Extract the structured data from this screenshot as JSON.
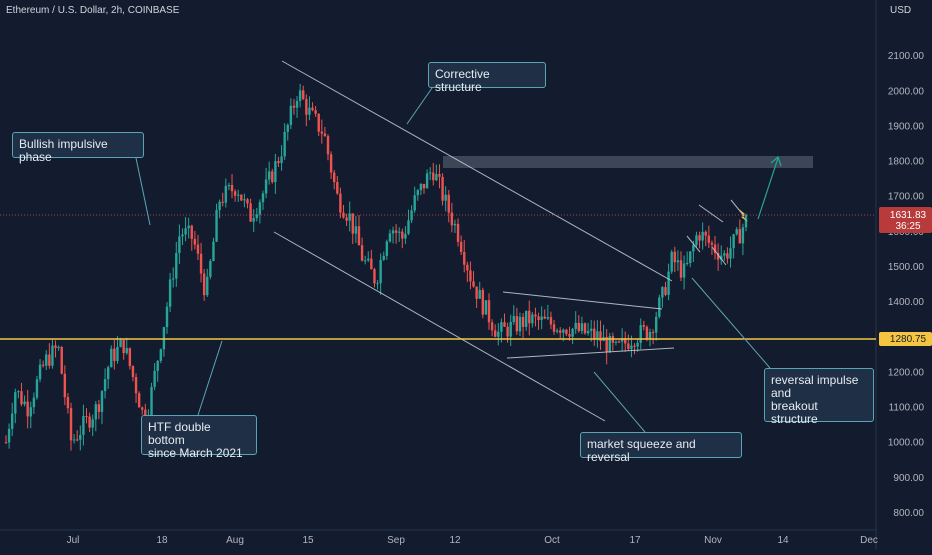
{
  "header": {
    "symbol_line": "Ethereum / U.S. Dollar, 2h, COINBASE",
    "currency": "USD"
  },
  "colors": {
    "background": "#131c2e",
    "up": "#26a69a",
    "down": "#ef5350",
    "support": "#f5c542",
    "trendline": "#c9d1dc",
    "callout_border": "#5aa5b5",
    "price_badge": "#b83a3a",
    "zone": "#4a5565"
  },
  "callouts": {
    "bullish": "Bullish impulsive phase",
    "corrective": "Corrective structure",
    "double_bottom": "HTF double bottom\nsince March 2021",
    "squeeze": "market squeeze and reversal",
    "reversal": "reversal impulse\nand\nbreakout structure"
  },
  "chart_data": {
    "type": "candlestick",
    "title": "Ethereum / U.S. Dollar, 2h, COINBASE",
    "ylim": [
      770,
      2180
    ],
    "y_ticks": [
      "2100.00",
      "2000.00",
      "1900.00",
      "1800.00",
      "1700.00",
      "1600.00",
      "1500.00",
      "1400.00",
      "1300.00",
      "1200.00",
      "1100.00",
      "1000.00",
      "900.00",
      "800.00"
    ],
    "x_ticks": [
      "Jul",
      "18",
      "Aug",
      "15",
      "Sep",
      "12",
      "Oct",
      "17",
      "Nov",
      "14",
      "Dec"
    ],
    "last_price": "1631.83",
    "countdown": "36:25",
    "support_level": "1280.75",
    "price_path": [
      [
        0,
        1000
      ],
      [
        0.01,
        1150
      ],
      [
        0.025,
        1100
      ],
      [
        0.045,
        1230
      ],
      [
        0.06,
        1270
      ],
      [
        0.075,
        1000
      ],
      [
        0.09,
        1050
      ],
      [
        0.105,
        1100
      ],
      [
        0.12,
        1240
      ],
      [
        0.135,
        1280
      ],
      [
        0.15,
        1150
      ],
      [
        0.16,
        1050
      ],
      [
        0.17,
        1180
      ],
      [
        0.185,
        1390
      ],
      [
        0.2,
        1600
      ],
      [
        0.215,
        1580
      ],
      [
        0.23,
        1420
      ],
      [
        0.245,
        1690
      ],
      [
        0.265,
        1730
      ],
      [
        0.28,
        1640
      ],
      [
        0.3,
        1730
      ],
      [
        0.315,
        1820
      ],
      [
        0.335,
        2000
      ],
      [
        0.35,
        1930
      ],
      [
        0.365,
        1880
      ],
      [
        0.38,
        1700
      ],
      [
        0.395,
        1640
      ],
      [
        0.41,
        1520
      ],
      [
        0.425,
        1460
      ],
      [
        0.44,
        1620
      ],
      [
        0.455,
        1580
      ],
      [
        0.47,
        1690
      ],
      [
        0.49,
        1780
      ],
      [
        0.505,
        1680
      ],
      [
        0.52,
        1590
      ],
      [
        0.535,
        1460
      ],
      [
        0.55,
        1380
      ],
      [
        0.565,
        1310
      ],
      [
        0.6,
        1350
      ],
      [
        0.64,
        1330
      ],
      [
        0.68,
        1300
      ],
      [
        0.7,
        1260
      ],
      [
        0.72,
        1300
      ],
      [
        0.74,
        1320
      ],
      [
        0.755,
        1420
      ],
      [
        0.765,
        1520
      ],
      [
        0.78,
        1480
      ],
      [
        0.795,
        1600
      ],
      [
        0.81,
        1560
      ],
      [
        0.825,
        1530
      ],
      [
        0.84,
        1580
      ],
      [
        0.85,
        1631.83
      ]
    ]
  }
}
